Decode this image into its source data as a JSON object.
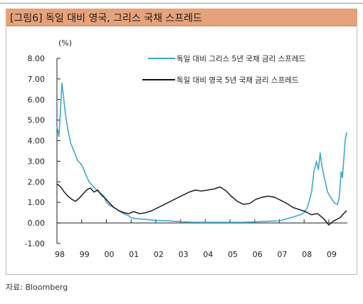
{
  "header": {
    "title": "[그림6] 독일 대비 영국, 그리스 국채 스프레드"
  },
  "footer": {
    "source": "자료: Bloomberg"
  },
  "colors": {
    "banner": "#e6a27b",
    "greece": "#3fa9c9",
    "uk": "#111111"
  },
  "chart_data": {
    "type": "line",
    "title": "",
    "unit_label": "(%)",
    "ylim": [
      -1.0,
      8.0
    ],
    "y_ticks": [
      "8.00",
      "7.00",
      "6.00",
      "5.00",
      "4.00",
      "3.00",
      "2.00",
      "1.00",
      "0.00",
      "-1.00"
    ],
    "xlim": [
      1998.0,
      2009.75
    ],
    "x_ticks": [
      {
        "label": "98",
        "x": 1998.0
      },
      {
        "label": "99",
        "x": 1999.0
      },
      {
        "label": "00",
        "x": 2000.0
      },
      {
        "label": "01",
        "x": 2001.0
      },
      {
        "label": "02",
        "x": 2002.0
      },
      {
        "label": "03",
        "x": 2003.0
      },
      {
        "label": "04",
        "x": 2004.0
      },
      {
        "label": "05",
        "x": 2005.0
      },
      {
        "label": "06",
        "x": 2006.0
      },
      {
        "label": "07",
        "x": 2007.0
      },
      {
        "label": "08",
        "x": 2008.0
      },
      {
        "label": "09",
        "x": 2009.0
      }
    ],
    "legend_position": "top-right",
    "series": [
      {
        "name": "독일 대비 그리스 5년 국채 금리 스프레드",
        "color": "#3fa9c9",
        "points": [
          [
            1998.0,
            4.7
          ],
          [
            1998.08,
            4.2
          ],
          [
            1998.15,
            5.6
          ],
          [
            1998.2,
            6.8
          ],
          [
            1998.26,
            6.2
          ],
          [
            1998.35,
            5.2
          ],
          [
            1998.45,
            4.5
          ],
          [
            1998.55,
            3.9
          ],
          [
            1998.65,
            3.6
          ],
          [
            1998.75,
            3.3
          ],
          [
            1998.85,
            3.0
          ],
          [
            1998.95,
            2.9
          ],
          [
            1999.05,
            2.7
          ],
          [
            1999.15,
            2.4
          ],
          [
            1999.3,
            2.0
          ],
          [
            1999.45,
            1.8
          ],
          [
            1999.6,
            1.6
          ],
          [
            1999.75,
            1.45
          ],
          [
            1999.9,
            1.3
          ],
          [
            2000.0,
            1.0
          ],
          [
            2000.15,
            0.85
          ],
          [
            2000.3,
            0.75
          ],
          [
            2000.5,
            0.6
          ],
          [
            2000.7,
            0.45
          ],
          [
            2000.9,
            0.35
          ],
          [
            2001.0,
            0.25
          ],
          [
            2001.25,
            0.2
          ],
          [
            2001.5,
            0.18
          ],
          [
            2001.75,
            0.15
          ],
          [
            2002.0,
            0.12
          ],
          [
            2002.5,
            0.1
          ],
          [
            2003.0,
            0.06
          ],
          [
            2003.5,
            0.04
          ],
          [
            2004.0,
            0.03
          ],
          [
            2004.5,
            0.03
          ],
          [
            2005.0,
            0.03
          ],
          [
            2005.5,
            0.03
          ],
          [
            2006.0,
            0.05
          ],
          [
            2006.5,
            0.08
          ],
          [
            2007.0,
            0.1
          ],
          [
            2007.3,
            0.2
          ],
          [
            2007.6,
            0.3
          ],
          [
            2007.85,
            0.4
          ],
          [
            2008.0,
            0.5
          ],
          [
            2008.15,
            0.8
          ],
          [
            2008.3,
            1.5
          ],
          [
            2008.4,
            2.5
          ],
          [
            2008.5,
            3.0
          ],
          [
            2008.58,
            2.6
          ],
          [
            2008.65,
            3.4
          ],
          [
            2008.72,
            2.8
          ],
          [
            2008.8,
            2.3
          ],
          [
            2008.88,
            1.9
          ],
          [
            2008.95,
            1.5
          ],
          [
            2009.05,
            1.3
          ],
          [
            2009.15,
            1.1
          ],
          [
            2009.25,
            0.95
          ],
          [
            2009.35,
            0.9
          ],
          [
            2009.42,
            1.2
          ],
          [
            2009.5,
            2.5
          ],
          [
            2009.55,
            2.2
          ],
          [
            2009.6,
            3.0
          ],
          [
            2009.66,
            4.0
          ],
          [
            2009.72,
            4.4
          ]
        ]
      },
      {
        "name": "독일 대비 영국 5년 국채 금리 스프레드",
        "color": "#111111",
        "points": [
          [
            1998.0,
            1.9
          ],
          [
            1998.15,
            1.75
          ],
          [
            1998.3,
            1.5
          ],
          [
            1998.45,
            1.3
          ],
          [
            1998.6,
            1.15
          ],
          [
            1998.75,
            1.05
          ],
          [
            1998.9,
            1.2
          ],
          [
            1999.05,
            1.4
          ],
          [
            1999.2,
            1.6
          ],
          [
            1999.35,
            1.7
          ],
          [
            1999.5,
            1.5
          ],
          [
            1999.65,
            1.6
          ],
          [
            1999.8,
            1.35
          ],
          [
            1999.95,
            1.2
          ],
          [
            2000.1,
            1.0
          ],
          [
            2000.3,
            0.75
          ],
          [
            2000.5,
            0.6
          ],
          [
            2000.7,
            0.5
          ],
          [
            2000.9,
            0.45
          ],
          [
            2001.1,
            0.55
          ],
          [
            2001.35,
            0.45
          ],
          [
            2001.6,
            0.5
          ],
          [
            2001.85,
            0.6
          ],
          [
            2002.1,
            0.75
          ],
          [
            2002.35,
            0.9
          ],
          [
            2002.6,
            1.05
          ],
          [
            2002.85,
            1.2
          ],
          [
            2003.1,
            1.35
          ],
          [
            2003.35,
            1.5
          ],
          [
            2003.6,
            1.6
          ],
          [
            2003.85,
            1.55
          ],
          [
            2004.1,
            1.6
          ],
          [
            2004.35,
            1.65
          ],
          [
            2004.6,
            1.75
          ],
          [
            2004.85,
            1.55
          ],
          [
            2005.05,
            1.3
          ],
          [
            2005.3,
            1.05
          ],
          [
            2005.55,
            0.9
          ],
          [
            2005.8,
            0.95
          ],
          [
            2006.05,
            1.15
          ],
          [
            2006.3,
            1.25
          ],
          [
            2006.55,
            1.3
          ],
          [
            2006.8,
            1.25
          ],
          [
            2007.05,
            1.1
          ],
          [
            2007.3,
            0.95
          ],
          [
            2007.55,
            0.75
          ],
          [
            2007.8,
            0.65
          ],
          [
            2008.05,
            0.55
          ],
          [
            2008.3,
            0.4
          ],
          [
            2008.55,
            0.45
          ],
          [
            2008.8,
            0.2
          ],
          [
            2009.0,
            -0.1
          ],
          [
            2009.2,
            0.1
          ],
          [
            2009.45,
            0.25
          ],
          [
            2009.6,
            0.45
          ],
          [
            2009.72,
            0.6
          ]
        ]
      }
    ]
  }
}
